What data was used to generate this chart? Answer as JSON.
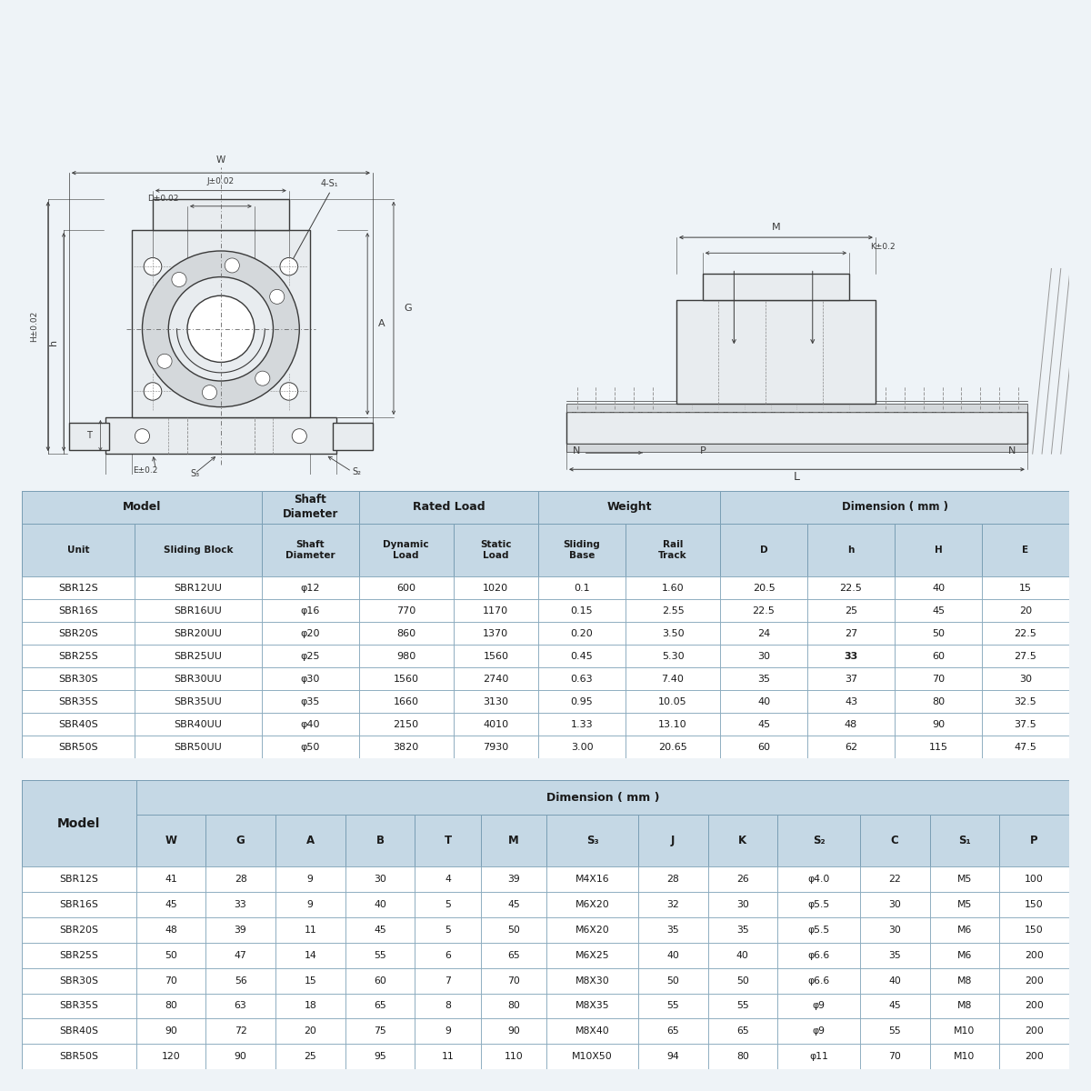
{
  "bg_color": "#eef3f7",
  "table_bg": "#c5d8e5",
  "border_color": "#7a9fb5",
  "text_color": "#1a1a1a",
  "white": "#ffffff",
  "table1_data": [
    [
      "SBR12S",
      "SBR12UU",
      "φ12",
      "600",
      "1020",
      "0.1",
      "1.60",
      "20.5",
      "22.5",
      "40",
      "15"
    ],
    [
      "SBR16S",
      "SBR16UU",
      "φ16",
      "770",
      "1170",
      "0.15",
      "2.55",
      "22.5",
      "25",
      "45",
      "20"
    ],
    [
      "SBR20S",
      "SBR20UU",
      "φ20",
      "860",
      "1370",
      "0.20",
      "3.50",
      "24",
      "27",
      "50",
      "22.5"
    ],
    [
      "SBR25S",
      "SBR25UU",
      "φ25",
      "980",
      "1560",
      "0.45",
      "5.30",
      "30",
      "33",
      "60",
      "27.5"
    ],
    [
      "SBR30S",
      "SBR30UU",
      "φ30",
      "1560",
      "2740",
      "0.63",
      "7.40",
      "35",
      "37",
      "70",
      "30"
    ],
    [
      "SBR35S",
      "SBR35UU",
      "φ35",
      "1660",
      "3130",
      "0.95",
      "10.05",
      "40",
      "43",
      "80",
      "32.5"
    ],
    [
      "SBR40S",
      "SBR40UU",
      "φ40",
      "2150",
      "4010",
      "1.33",
      "13.10",
      "45",
      "48",
      "90",
      "37.5"
    ],
    [
      "SBR50S",
      "SBR50UU",
      "φ50",
      "3820",
      "7930",
      "3.00",
      "20.65",
      "60",
      "62",
      "115",
      "47.5"
    ]
  ],
  "table1_highlight_row": 3,
  "table1_highlight_col": 8,
  "table2_data": [
    [
      "SBR12S",
      "41",
      "28",
      "9",
      "30",
      "4",
      "39",
      "M4X16",
      "28",
      "26",
      "φ4.0",
      "22",
      "M5",
      "100"
    ],
    [
      "SBR16S",
      "45",
      "33",
      "9",
      "40",
      "5",
      "45",
      "M6X20",
      "32",
      "30",
      "φ5.5",
      "30",
      "M5",
      "150"
    ],
    [
      "SBR20S",
      "48",
      "39",
      "11",
      "45",
      "5",
      "50",
      "M6X20",
      "35",
      "35",
      "φ5.5",
      "30",
      "M6",
      "150"
    ],
    [
      "SBR25S",
      "50",
      "47",
      "14",
      "55",
      "6",
      "65",
      "M6X25",
      "40",
      "40",
      "φ6.6",
      "35",
      "M6",
      "200"
    ],
    [
      "SBR30S",
      "70",
      "56",
      "15",
      "60",
      "7",
      "70",
      "M8X30",
      "50",
      "50",
      "φ6.6",
      "40",
      "M8",
      "200"
    ],
    [
      "SBR35S",
      "80",
      "63",
      "18",
      "65",
      "8",
      "80",
      "M8X35",
      "55",
      "55",
      "φ9",
      "45",
      "M8",
      "200"
    ],
    [
      "SBR40S",
      "90",
      "72",
      "20",
      "75",
      "9",
      "90",
      "M8X40",
      "65",
      "65",
      "φ9",
      "55",
      "M10",
      "200"
    ],
    [
      "SBR50S",
      "120",
      "90",
      "25",
      "95",
      "11",
      "110",
      "M10X50",
      "94",
      "80",
      "φ11",
      "70",
      "M10",
      "200"
    ]
  ],
  "lc": "#3a3a3a",
  "dim_color": "#3a3a3a",
  "fill_light": "#e8ecef",
  "fill_mid": "#d4d8db",
  "fill_dark": "#c0c4c8"
}
